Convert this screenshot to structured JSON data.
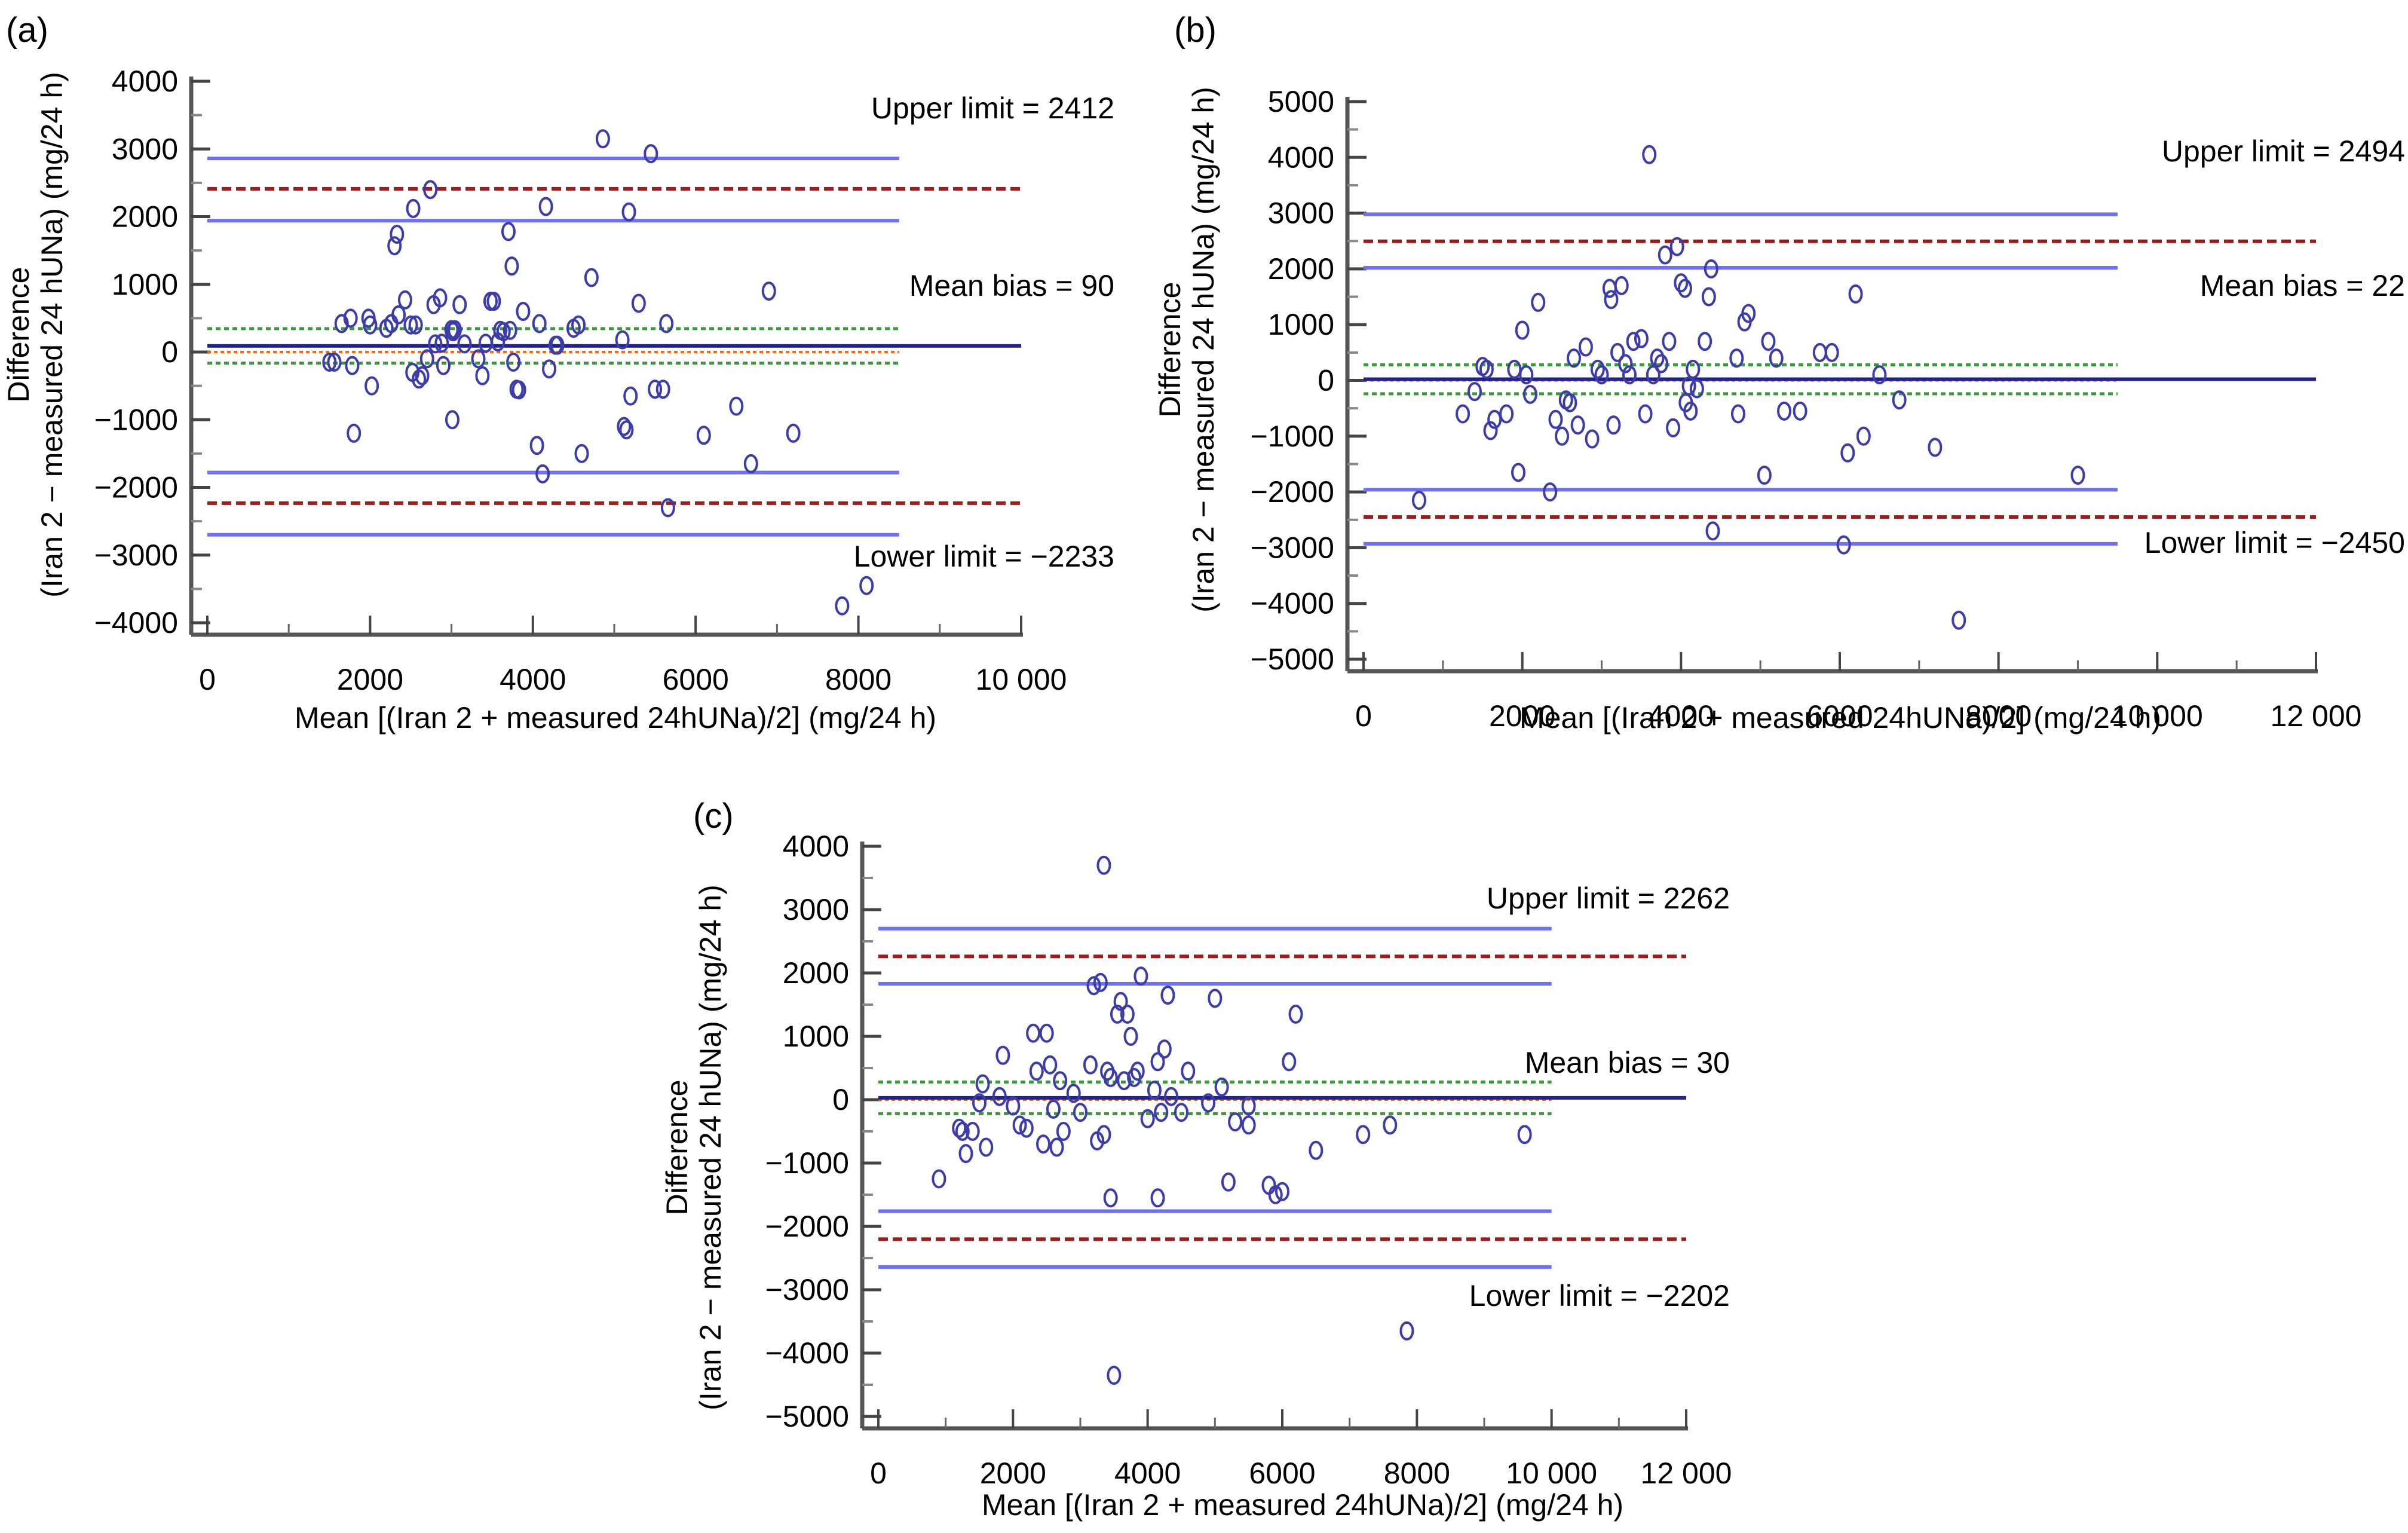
{
  "figure": {
    "panels": [
      "(a)",
      "(b)",
      "(c)"
    ]
  },
  "chart_data": [
    {
      "type": "scatter",
      "panel_label": "(a)",
      "title": "",
      "xlabel": "Mean [(Iran 2 + measured 24hUNa)/2] (mg/24 h)",
      "ylabel_line1": "Difference",
      "ylabel_line2": "(Iran 2 − measured 24 hUNa) (mg/24 h)",
      "xlim": [
        0,
        10000
      ],
      "ylim": [
        -4000,
        4000
      ],
      "x_ticks": [
        0,
        2000,
        4000,
        6000,
        8000,
        10000
      ],
      "x_tick_labels": [
        "0",
        "2000",
        "4000",
        "6000",
        "8000",
        "10 000"
      ],
      "y_ticks": [
        4000,
        3000,
        2000,
        1000,
        0,
        -1000,
        -2000,
        -3000,
        -4000
      ],
      "y_tick_labels": [
        "4000",
        "3000",
        "2000",
        "1000",
        "0",
        "−1000",
        "−2000",
        "−3000",
        "−4000"
      ],
      "grid": false,
      "annotations": {
        "upper": "Upper limit = 2412",
        "mean": "Mean bias = 90",
        "lower": "Lower limit = −2233"
      },
      "reference_lines": {
        "zero": 0,
        "mean_bias": 90,
        "mean_ci": [
          345,
          -165
        ],
        "upper_limit": 2412,
        "upper_limit_ci": [
          2860,
          1940
        ],
        "lower_limit": -2233,
        "lower_limit_ci": [
          -1780,
          -2700
        ],
        "ci_line_xmax": 8500,
        "limit_line_xmax": 10000
      },
      "points": [
        [
          1500,
          -150
        ],
        [
          1560,
          -150
        ],
        [
          1650,
          420
        ],
        [
          1760,
          500
        ],
        [
          1780,
          -200
        ],
        [
          1800,
          -1200
        ],
        [
          1980,
          500
        ],
        [
          2000,
          400
        ],
        [
          2020,
          -500
        ],
        [
          2200,
          350
        ],
        [
          2260,
          420
        ],
        [
          2300,
          1570
        ],
        [
          2330,
          1740
        ],
        [
          2350,
          550
        ],
        [
          2430,
          770
        ],
        [
          2500,
          400
        ],
        [
          2520,
          -300
        ],
        [
          2530,
          2120
        ],
        [
          2560,
          400
        ],
        [
          2600,
          -400
        ],
        [
          2640,
          -350
        ],
        [
          2700,
          -100
        ],
        [
          2740,
          2400
        ],
        [
          2780,
          700
        ],
        [
          2800,
          120
        ],
        [
          2860,
          800
        ],
        [
          2880,
          130
        ],
        [
          2900,
          -200
        ],
        [
          3000,
          330
        ],
        [
          3010,
          -1000
        ],
        [
          3020,
          300
        ],
        [
          3040,
          330
        ],
        [
          3100,
          700
        ],
        [
          3160,
          120
        ],
        [
          3330,
          -100
        ],
        [
          3380,
          -350
        ],
        [
          3420,
          130
        ],
        [
          3480,
          750
        ],
        [
          3520,
          750
        ],
        [
          3570,
          150
        ],
        [
          3600,
          320
        ],
        [
          3640,
          300
        ],
        [
          3700,
          1780
        ],
        [
          3720,
          320
        ],
        [
          3740,
          1270
        ],
        [
          3760,
          -150
        ],
        [
          3800,
          -550
        ],
        [
          3830,
          -560
        ],
        [
          3880,
          600
        ],
        [
          4050,
          -1380
        ],
        [
          4080,
          420
        ],
        [
          4120,
          -1800
        ],
        [
          4160,
          2150
        ],
        [
          4200,
          -250
        ],
        [
          4280,
          100
        ],
        [
          4300,
          100
        ],
        [
          4500,
          350
        ],
        [
          4560,
          400
        ],
        [
          4600,
          -1500
        ],
        [
          4720,
          1100
        ],
        [
          4860,
          3150
        ],
        [
          5100,
          180
        ],
        [
          5120,
          -1100
        ],
        [
          5150,
          -1150
        ],
        [
          5180,
          2070
        ],
        [
          5200,
          -650
        ],
        [
          5300,
          720
        ],
        [
          5450,
          2930
        ],
        [
          5500,
          -550
        ],
        [
          5600,
          -550
        ],
        [
          5640,
          420
        ],
        [
          5660,
          -2300
        ],
        [
          6100,
          -1230
        ],
        [
          6500,
          -800
        ],
        [
          6680,
          -1650
        ],
        [
          6900,
          900
        ],
        [
          7200,
          -1200
        ],
        [
          7800,
          -3750
        ],
        [
          8100,
          -3450
        ]
      ]
    },
    {
      "type": "scatter",
      "panel_label": "(b)",
      "title": "",
      "xlabel": "Mean [(Iran 2 + measured 24hUNa)/2] (mg/24 h)",
      "ylabel_line1": "Difference",
      "ylabel_line2": "(Iran 2 − measured 24 hUNa) (mg/24 h)",
      "xlim": [
        0,
        12000
      ],
      "ylim": [
        -5000,
        5000
      ],
      "x_ticks": [
        0,
        2000,
        4000,
        6000,
        8000,
        10000,
        12000
      ],
      "x_tick_labels": [
        "0",
        "2000",
        "4000",
        "6000",
        "8000",
        "10 000",
        "12 000"
      ],
      "y_ticks": [
        5000,
        4000,
        3000,
        2000,
        1000,
        0,
        -1000,
        -2000,
        -3000,
        -4000,
        -5000
      ],
      "y_tick_labels": [
        "5000",
        "4000",
        "3000",
        "2000",
        "1000",
        "0",
        "−1000",
        "−2000",
        "−3000",
        "−4000",
        "−5000"
      ],
      "grid": false,
      "annotations": {
        "upper": "Upper limit = 2494",
        "mean": "Mean bias = 22",
        "lower": "Lower limit = −2450"
      },
      "reference_lines": {
        "zero": 0,
        "mean_bias": 22,
        "mean_ci": [
          280,
          -240
        ],
        "upper_limit": 2494,
        "upper_limit_ci": [
          2980,
          2020
        ],
        "lower_limit": -2450,
        "lower_limit_ci": [
          -1960,
          -2930
        ],
        "ci_line_xmax": 9500,
        "limit_line_xmax": 12000
      },
      "points": [
        [
          700,
          -2150
        ],
        [
          1250,
          -600
        ],
        [
          1400,
          -200
        ],
        [
          1500,
          250
        ],
        [
          1550,
          200
        ],
        [
          1600,
          -900
        ],
        [
          1650,
          -700
        ],
        [
          1800,
          -600
        ],
        [
          1900,
          200
        ],
        [
          1950,
          -1650
        ],
        [
          2000,
          900
        ],
        [
          2050,
          100
        ],
        [
          2100,
          -250
        ],
        [
          2200,
          1400
        ],
        [
          2350,
          -2000
        ],
        [
          2420,
          -700
        ],
        [
          2500,
          -1000
        ],
        [
          2550,
          -350
        ],
        [
          2600,
          -400
        ],
        [
          2650,
          400
        ],
        [
          2700,
          -800
        ],
        [
          2800,
          600
        ],
        [
          2880,
          -1050
        ],
        [
          2950,
          200
        ],
        [
          3000,
          100
        ],
        [
          3100,
          1650
        ],
        [
          3120,
          1450
        ],
        [
          3150,
          -800
        ],
        [
          3200,
          500
        ],
        [
          3250,
          1700
        ],
        [
          3300,
          300
        ],
        [
          3350,
          100
        ],
        [
          3400,
          700
        ],
        [
          3500,
          750
        ],
        [
          3550,
          -600
        ],
        [
          3600,
          4050
        ],
        [
          3650,
          100
        ],
        [
          3700,
          400
        ],
        [
          3750,
          300
        ],
        [
          3800,
          2250
        ],
        [
          3850,
          700
        ],
        [
          3900,
          -850
        ],
        [
          3950,
          2400
        ],
        [
          4000,
          1750
        ],
        [
          4050,
          1650
        ],
        [
          4060,
          -400
        ],
        [
          4100,
          -100
        ],
        [
          4120,
          -550
        ],
        [
          4150,
          200
        ],
        [
          4200,
          -150
        ],
        [
          4300,
          700
        ],
        [
          4350,
          1500
        ],
        [
          4380,
          2000
        ],
        [
          4400,
          -2700
        ],
        [
          4700,
          400
        ],
        [
          4720,
          -600
        ],
        [
          4800,
          1050
        ],
        [
          4850,
          1200
        ],
        [
          5050,
          -1700
        ],
        [
          5100,
          700
        ],
        [
          5200,
          400
        ],
        [
          5300,
          -550
        ],
        [
          5500,
          -550
        ],
        [
          5750,
          500
        ],
        [
          5900,
          500
        ],
        [
          6050,
          -2950
        ],
        [
          6100,
          -1300
        ],
        [
          6200,
          1550
        ],
        [
          6300,
          -1000
        ],
        [
          6500,
          100
        ],
        [
          6750,
          -350
        ],
        [
          7200,
          -1200
        ],
        [
          7500,
          -4300
        ],
        [
          9000,
          -1700
        ]
      ]
    },
    {
      "type": "scatter",
      "panel_label": "(c)",
      "title": "",
      "xlabel": "Mean [(Iran 2 + measured 24hUNa)/2] (mg/24 h)",
      "ylabel_line1": "Difference",
      "ylabel_line2": "(Iran 2 − measured 24 hUNa) (mg/24 h)",
      "xlim": [
        0,
        12000
      ],
      "ylim": [
        -5000,
        4000
      ],
      "x_ticks": [
        0,
        2000,
        4000,
        6000,
        8000,
        10000,
        12000
      ],
      "x_tick_labels": [
        "0",
        "2000",
        "4000",
        "6000",
        "8000",
        "10 000",
        "12 000"
      ],
      "y_ticks": [
        4000,
        3000,
        2000,
        1000,
        0,
        -1000,
        -2000,
        -3000,
        -4000,
        -5000
      ],
      "y_tick_labels": [
        "4000",
        "3000",
        "2000",
        "1000",
        "0",
        "−1000",
        "−2000",
        "−3000",
        "−4000",
        "−5000"
      ],
      "grid": false,
      "annotations": {
        "upper": "Upper limit = 2262",
        "mean": "Mean bias = 30",
        "lower": "Lower limit = −2202"
      },
      "reference_lines": {
        "zero": 0,
        "mean_bias": 30,
        "mean_ci": [
          280,
          -220
        ],
        "upper_limit": 2262,
        "upper_limit_ci": [
          2700,
          1830
        ],
        "lower_limit": -2202,
        "lower_limit_ci": [
          -1760,
          -2640
        ],
        "ci_line_xmax": 10000,
        "limit_line_xmax": 12000
      },
      "points": [
        [
          900,
          -1250
        ],
        [
          1200,
          -450
        ],
        [
          1250,
          -500
        ],
        [
          1300,
          -850
        ],
        [
          1400,
          -500
        ],
        [
          1500,
          -50
        ],
        [
          1550,
          250
        ],
        [
          1600,
          -750
        ],
        [
          1800,
          50
        ],
        [
          1850,
          700
        ],
        [
          2000,
          -100
        ],
        [
          2100,
          -400
        ],
        [
          2200,
          -450
        ],
        [
          2300,
          1050
        ],
        [
          2350,
          450
        ],
        [
          2450,
          -700
        ],
        [
          2500,
          1050
        ],
        [
          2550,
          550
        ],
        [
          2600,
          -150
        ],
        [
          2650,
          -750
        ],
        [
          2700,
          300
        ],
        [
          2750,
          -500
        ],
        [
          2900,
          100
        ],
        [
          3000,
          -200
        ],
        [
          3150,
          550
        ],
        [
          3200,
          1800
        ],
        [
          3250,
          -650
        ],
        [
          3300,
          1850
        ],
        [
          3350,
          -550
        ],
        [
          3350,
          3700
        ],
        [
          3400,
          450
        ],
        [
          3450,
          -1550
        ],
        [
          3450,
          350
        ],
        [
          3500,
          -4350
        ],
        [
          3550,
          1350
        ],
        [
          3600,
          1550
        ],
        [
          3650,
          300
        ],
        [
          3700,
          1350
        ],
        [
          3750,
          1000
        ],
        [
          3800,
          350
        ],
        [
          3850,
          450
        ],
        [
          3900,
          1950
        ],
        [
          4000,
          -300
        ],
        [
          4100,
          150
        ],
        [
          4150,
          600
        ],
        [
          4150,
          -1550
        ],
        [
          4200,
          -200
        ],
        [
          4250,
          800
        ],
        [
          4300,
          1650
        ],
        [
          4350,
          50
        ],
        [
          4500,
          -200
        ],
        [
          4600,
          450
        ],
        [
          4900,
          -50
        ],
        [
          5000,
          1600
        ],
        [
          5100,
          200
        ],
        [
          5200,
          -1300
        ],
        [
          5300,
          -350
        ],
        [
          5500,
          -100
        ],
        [
          5500,
          -400
        ],
        [
          5800,
          -1350
        ],
        [
          5900,
          -1500
        ],
        [
          6000,
          -1450
        ],
        [
          6100,
          600
        ],
        [
          6200,
          1350
        ],
        [
          6500,
          -800
        ],
        [
          7200,
          -550
        ],
        [
          7600,
          -400
        ],
        [
          7850,
          -3650
        ],
        [
          9600,
          -550
        ]
      ]
    }
  ]
}
